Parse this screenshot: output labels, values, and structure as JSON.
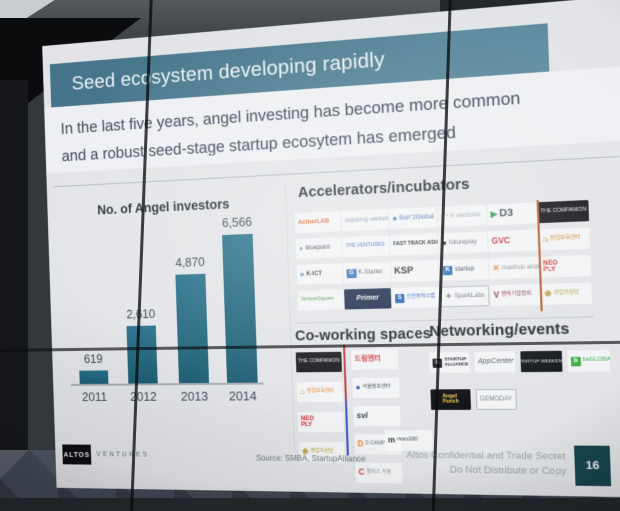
{
  "chart_data": {
    "type": "bar",
    "title": "No. of Angel investors",
    "categories": [
      "2011",
      "2012",
      "2013",
      "2014"
    ],
    "values": [
      619,
      2610,
      4870,
      6566
    ],
    "value_labels": [
      "619",
      "2,610",
      "4,870",
      "6,566"
    ],
    "xlabel": "",
    "ylabel": "",
    "ylim": [
      0,
      7000
    ],
    "grid": false,
    "legend": false,
    "bar_color": "#1f6377"
  },
  "slide": {
    "title": "Seed ecosystem developing rapidly",
    "subtitle": [
      "In the last five years, angel investing has become more common",
      "and a robust seed-stage startup ecosytem has emerged"
    ],
    "chart_header": "No. of Angel investors",
    "accelerators": {
      "heading": "Accelerators/incubators",
      "logos": [
        {
          "t": "ActnerLAB",
          "fg": "#d95f2b",
          "b": 1
        },
        {
          "t": "sopoong ventures",
          "fg": "#7d8da8"
        },
        {
          "t": "Born2Global",
          "fg": "#3f6fb5",
          "g": "●",
          "gc": "#2f7fc1"
        },
        {
          "t": "K ventures",
          "fg": "#9aa2b0",
          "it": 1,
          "g": "◠",
          "gc": "#b8bec8"
        },
        {
          "t": "D3",
          "fg": "#4a4f55",
          "b": 1,
          "fs": 10,
          "g": "▶",
          "gc": "#3a9a4d"
        },
        {
          "t": "THE COMPANION",
          "bx": "#15171a",
          "fg": "#e8eaec",
          "fs": 5
        },
        {
          "t": "bluepoint",
          "fg": "#3c434e",
          "g": "◗",
          "gc": "#2e6fc0"
        },
        {
          "t": "THE VENTURES",
          "fg": "#3a66b0",
          "fs": 5
        },
        {
          "t": "FAST TRACK ASIA",
          "fg": "#23262b",
          "b": 1,
          "fs": 5
        },
        {
          "t": "futureplay",
          "fg": "#6b7077",
          "g": "●",
          "gc": "#23262b"
        },
        {
          "t": "GVC",
          "fg": "#c23535",
          "b": 1,
          "fs": 8
        },
        {
          "t": "창업보육센터",
          "fg": "#d9822b",
          "g": "⌂",
          "gc": "#d9822b",
          "fs": 5
        },
        {
          "t": "K-ICT",
          "fg": "#39404a",
          "b": 1,
          "g": "»",
          "gc": "#2f6fba"
        },
        {
          "t": "K-Starter",
          "fg": "#555b63",
          "g": "G",
          "gb": "#3f72b5"
        },
        {
          "t": "KSP",
          "fg": "#2a2d33",
          "b": 1,
          "fs": 9
        },
        {
          "t": "startup",
          "fg": "#3c434e",
          "g": "K",
          "gb": "#2f6fba"
        },
        {
          "t": "mashup angels",
          "fg": "#8a9097",
          "g": "✕",
          "gc": "#e8862d"
        },
        {
          "t": "NEO\nPLY",
          "fg": "#c62828",
          "b": 1,
          "pre": 1,
          "fs": 6
        },
        {
          "t": "VentureSquare",
          "fg": "#4d9a3f",
          "fs": 5
        },
        {
          "t": "Primer",
          "bx": "#1b2a4a",
          "fg": "#f0f2f4",
          "it": 1,
          "b": 1,
          "fs": 7
        },
        {
          "t": "신한퓨처스랩",
          "fg": "#2b62b8",
          "g": "S",
          "gb": "#2b62b8",
          "fs": 5
        },
        {
          "t": "SparkLabs",
          "fg": "#6f757d",
          "g": "✦",
          "gc": "#8a9097",
          "bd": 1
        },
        {
          "t": "벤처기업협회",
          "fg": "#8c2f4f",
          "g": "V",
          "gc": "#8c2f4f",
          "fs": 5
        },
        {
          "t": "창업지원단",
          "fg": "#b89a3e",
          "g": "❀",
          "gc": "#b89a3e",
          "fs": 5
        }
      ]
    },
    "coworking": {
      "heading": "Co-working spaces",
      "col1": [
        {
          "t": "THE COMPANION",
          "bx": "#15171a",
          "fg": "#e8eaec",
          "fs": 5
        },
        {
          "t": "창업보육센터",
          "fg": "#d9822b",
          "g": "⌂",
          "gc": "#d9822b",
          "fs": 5
        },
        {
          "t": "NEO\nPLY",
          "fg": "#c62828",
          "b": 1,
          "pre": 1,
          "fs": 6
        },
        {
          "t": "창업지원단",
          "fg": "#b89a3e",
          "g": "❀",
          "gc": "#b89a3e",
          "fs": 5
        }
      ],
      "col2": [
        {
          "t": "드림엔터",
          "fg": "#cf3636",
          "b": 1,
          "fs": 7
        },
        {
          "t": "서울창조센터",
          "fg": "#3c434e",
          "g": "●",
          "gc": "#2e5fae",
          "fs": 5
        },
        {
          "t": "svi",
          "fg": "#2f3540",
          "b": 1,
          "it": 1,
          "fs": 8
        },
        {
          "t": "D.CAMP",
          "fg": "#6b7077",
          "g": "D",
          "gc": "#e8862d",
          "fs": 5
        },
        {
          "t": "캠퍼스 서울",
          "fg": "#8a9097",
          "g": "C",
          "gc": "#d23b3b",
          "fs": 5
        }
      ],
      "col3": [
        {
          "t": "maru180",
          "fg": "#3c434e",
          "g": "m",
          "gc": "#2f3540",
          "fs": 5
        }
      ]
    },
    "networking": {
      "heading": "Networking/events",
      "row1": [
        {
          "t": "STARTUP\nALLIANCE",
          "fg": "#23262b",
          "b": 1,
          "pre": 1,
          "fs": 4.5,
          "g": "&",
          "gb": "#1b1d21"
        },
        {
          "t": "AppCenter",
          "fg": "#555b63",
          "it": 1,
          "fs": 7
        },
        {
          "t": "STARTUP WEEKEND",
          "bx": "#15181d",
          "fg": "#dfe2e6",
          "fs": 4.5
        },
        {
          "t": "beGLOBAL",
          "fg": "#3fae49",
          "g": "b",
          "gb": "#3fae49",
          "fs": 5.5
        }
      ],
      "row2": [
        {
          "t": "Angel\nPunch",
          "bx": "#101114",
          "fg": "#f0d45a",
          "b": 1,
          "pre": 1,
          "fs": 5
        },
        {
          "t": "DEMODAY",
          "fg": "#7a8089",
          "bd": 1,
          "fs": 6
        }
      ]
    },
    "source": "Source: SMBA, StartupAlliance",
    "footer": {
      "brand": "ALTOS",
      "brand2": "VENTURES",
      "confidential": [
        "Altos Confidential and Trade Secret",
        "Do Not Distribute or Copy"
      ],
      "page": "16"
    },
    "colors": {
      "banner_teal": "#4e7f93",
      "bar_teal": "#1f6377",
      "page_box_teal": "#17454e",
      "accelerator_divider_orange": "#b5622f",
      "coworking_divider_red": "#c23b3b",
      "coworking_divider_blue": "#3b55c2"
    }
  }
}
